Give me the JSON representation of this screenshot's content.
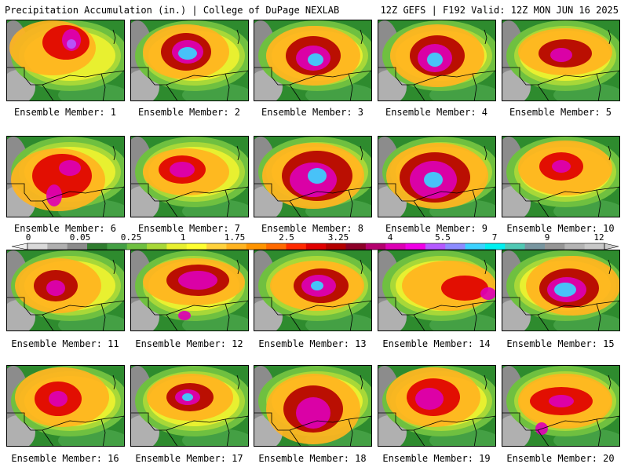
{
  "header": {
    "left": "Precipitation Accumulation (in.) | College of DuPage NEXLAB",
    "right": "12Z GEFS | F192 Valid: 12Z MON JUN 16 2025"
  },
  "colorbar": {
    "tick_labels": [
      "0",
      "0.05",
      "0.25",
      "1",
      "1.75",
      "2.5",
      "3.25",
      "4",
      "5.5",
      "7",
      "9",
      "12"
    ],
    "colors": [
      "#d9d9d9",
      "#b0b0b0",
      "#8c8c8c",
      "#2f7d2f",
      "#44a044",
      "#6fc040",
      "#a8d838",
      "#e8f030",
      "#ffff30",
      "#ffd23c",
      "#ffb420",
      "#ff9400",
      "#ff6a00",
      "#ff2a00",
      "#e00000",
      "#b40000",
      "#8c0028",
      "#b4006e",
      "#dc00b4",
      "#f000e6",
      "#b45aff",
      "#8c8cff",
      "#3cd2ff",
      "#00f0f0",
      "#50c8b4",
      "#7896a0",
      "#969696",
      "#b4b4b4",
      "#c8c8c8"
    ]
  },
  "members": [
    {
      "label": "Ensemble Member: 1"
    },
    {
      "label": "Ensemble Member: 2"
    },
    {
      "label": "Ensemble Member: 3"
    },
    {
      "label": "Ensemble Member: 4"
    },
    {
      "label": "Ensemble Member: 5"
    },
    {
      "label": "Ensemble Member: 6"
    },
    {
      "label": "Ensemble Member: 7"
    },
    {
      "label": "Ensemble Member: 8"
    },
    {
      "label": "Ensemble Member: 9"
    },
    {
      "label": "Ensemble Member: 10"
    },
    {
      "label": "Ensemble Member: 11"
    },
    {
      "label": "Ensemble Member: 12"
    },
    {
      "label": "Ensemble Member: 13"
    },
    {
      "label": "Ensemble Member: 14"
    },
    {
      "label": "Ensemble Member: 15"
    },
    {
      "label": "Ensemble Member: 16"
    },
    {
      "label": "Ensemble Member: 17"
    },
    {
      "label": "Ensemble Member: 18"
    },
    {
      "label": "Ensemble Member: 19"
    },
    {
      "label": "Ensemble Member: 20"
    }
  ]
}
